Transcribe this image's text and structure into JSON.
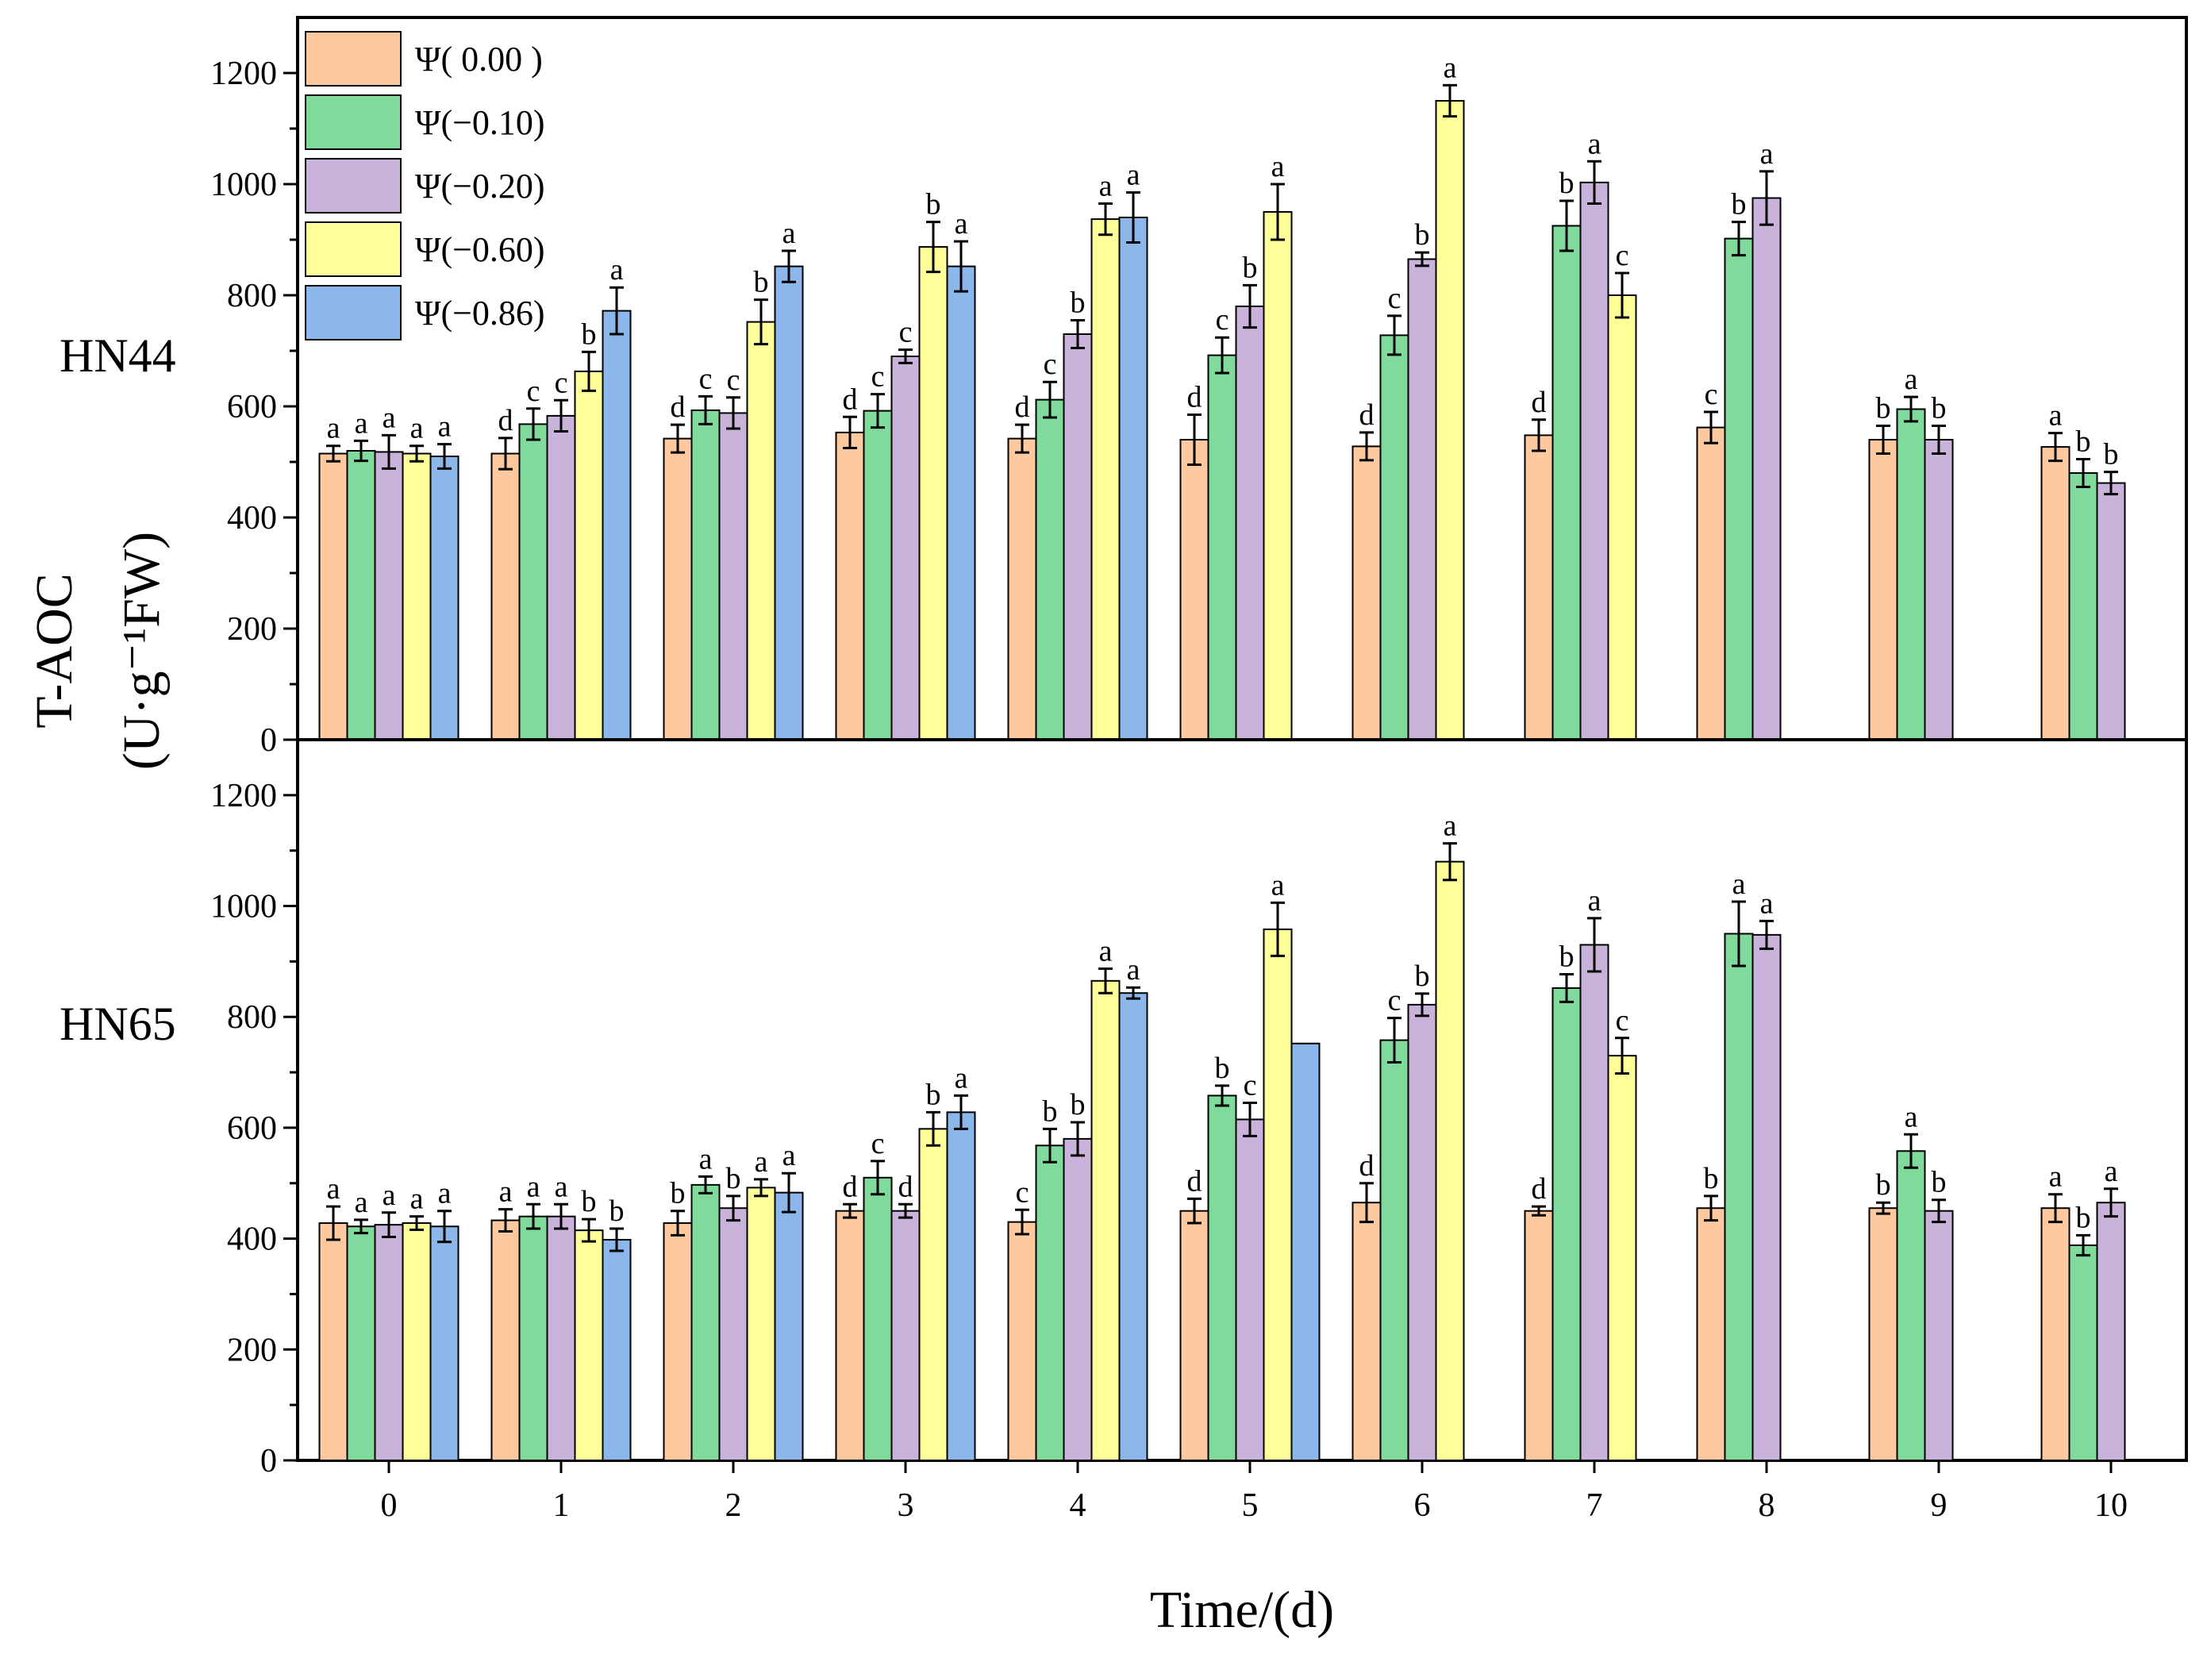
{
  "chart_data": {
    "type": "bar",
    "xlabel": "Time/(d)",
    "ylabel_line1": "T-AOC",
    "ylabel_line2": "(U·g⁻¹FW)",
    "categories": [
      "0",
      "1",
      "2",
      "3",
      "4",
      "5",
      "6",
      "7",
      "8",
      "9",
      "10"
    ],
    "ylim": [
      0,
      1300
    ],
    "yticks": [
      0,
      200,
      400,
      600,
      800,
      1000,
      1200
    ],
    "legend": {
      "position": "top-left",
      "entries": [
        "Ψ( 0.00 )",
        "Ψ(−0.10)",
        "Ψ(−0.20)",
        "Ψ(−0.60)",
        "Ψ(−0.86)"
      ]
    },
    "series_colors": [
      "#FFC9A0",
      "#7FDA9B",
      "#C9B3DB",
      "#FFFF99",
      "#8CB7EB"
    ],
    "panels": [
      {
        "name": "HN44",
        "series": [
          {
            "name": "Ψ( 0.00 )",
            "values": [
              515,
              515,
              542,
              553,
              542,
              540,
              528,
              548,
              562,
              540,
              527
            ],
            "errors": [
              14,
              28,
              25,
              28,
              25,
              45,
              25,
              28,
              28,
              25,
              25
            ],
            "letters": [
              "a",
              "d",
              "d",
              "d",
              "d",
              "d",
              "d",
              "d",
              "c",
              "b",
              "a"
            ]
          },
          {
            "name": "Ψ(−0.10)",
            "values": [
              520,
              568,
              593,
              592,
              612,
              692,
              728,
              925,
              902,
              595,
              480
            ],
            "errors": [
              18,
              28,
              25,
              30,
              32,
              32,
              35,
              45,
              30,
              22,
              25
            ],
            "letters": [
              "a",
              "c",
              "c",
              "c",
              "c",
              "c",
              "c",
              "b",
              "b",
              "a",
              "b"
            ]
          },
          {
            "name": "Ψ(−0.20)",
            "values": [
              518,
              583,
              588,
              690,
              730,
              780,
              865,
              1003,
              975,
              540,
              462
            ],
            "errors": [
              30,
              28,
              28,
              12,
              25,
              38,
              12,
              38,
              48,
              25,
              20
            ],
            "letters": [
              "a",
              "c",
              "c",
              "c",
              "b",
              "b",
              "b",
              "a",
              "a",
              "b",
              "b"
            ]
          },
          {
            "name": "Ψ(−0.60)",
            "values": [
              515,
              663,
              752,
              887,
              937,
              950,
              1150,
              800,
              null,
              null,
              null
            ],
            "errors": [
              14,
              35,
              40,
              45,
              28,
              50,
              28,
              40,
              null,
              null,
              null
            ],
            "letters": [
              "a",
              "b",
              "b",
              "b",
              "a",
              "a",
              "a",
              "c",
              "",
              "",
              ""
            ]
          },
          {
            "name": "Ψ(−0.86)",
            "values": [
              510,
              772,
              852,
              852,
              940,
              null,
              null,
              null,
              null,
              null,
              null
            ],
            "errors": [
              22,
              42,
              28,
              45,
              45,
              null,
              null,
              null,
              null,
              null,
              null
            ],
            "letters": [
              "a",
              "a",
              "a",
              "a",
              "a",
              "",
              "",
              "",
              "",
              "",
              ""
            ]
          }
        ]
      },
      {
        "name": "HN65",
        "series": [
          {
            "name": "Ψ( 0.00 )",
            "values": [
              428,
              433,
              428,
              450,
              430,
              450,
              465,
              450,
              455,
              455,
              455
            ],
            "errors": [
              30,
              20,
              22,
              12,
              22,
              22,
              35,
              8,
              22,
              10,
              25
            ],
            "letters": [
              "a",
              "a",
              "b",
              "d",
              "c",
              "d",
              "d",
              "d",
              "b",
              "b",
              "a"
            ]
          },
          {
            "name": "Ψ(−0.10)",
            "values": [
              422,
              440,
              497,
              510,
              568,
              658,
              758,
              852,
              950,
              558,
              388
            ],
            "errors": [
              12,
              22,
              15,
              30,
              30,
              18,
              40,
              25,
              58,
              30,
              18
            ],
            "letters": [
              "a",
              "a",
              "a",
              "c",
              "b",
              "b",
              "c",
              "b",
              "a",
              "a",
              "b"
            ]
          },
          {
            "name": "Ψ(−0.20)",
            "values": [
              425,
              440,
              455,
              450,
              580,
              615,
              822,
              930,
              948,
              450,
              465
            ],
            "errors": [
              22,
              22,
              22,
              12,
              30,
              30,
              20,
              48,
              25,
              20,
              25
            ],
            "letters": [
              "a",
              "a",
              "b",
              "d",
              "b",
              "c",
              "b",
              "a",
              "a",
              "b",
              "a"
            ]
          },
          {
            "name": "Ψ(−0.60)",
            "values": [
              428,
              415,
              492,
              598,
              865,
              958,
              1080,
              730,
              null,
              null,
              null
            ],
            "errors": [
              12,
              20,
              15,
              30,
              22,
              48,
              33,
              32,
              null,
              null,
              null
            ],
            "letters": [
              "a",
              "b",
              "a",
              "b",
              "a",
              "a",
              "a",
              "c",
              "",
              "",
              ""
            ]
          },
          {
            "name": "Ψ(−0.86)",
            "values": [
              422,
              398,
              483,
              628,
              843,
              752,
              null,
              null,
              null,
              null,
              null
            ],
            "errors": [
              28,
              20,
              35,
              30,
              10,
              0,
              null,
              null,
              null,
              null,
              null
            ],
            "letters": [
              "a",
              "b",
              "a",
              "a",
              "a",
              "",
              "",
              "",
              "",
              "",
              ""
            ]
          }
        ]
      }
    ]
  }
}
